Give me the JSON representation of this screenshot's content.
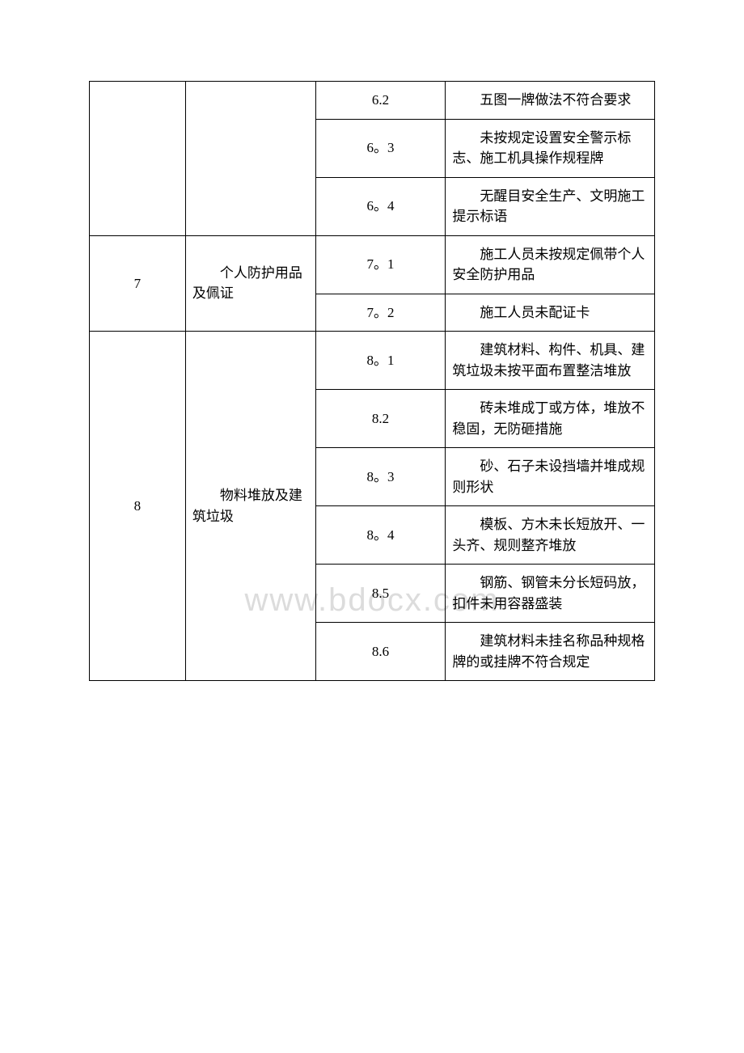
{
  "watermark": "www.bdocx.com",
  "table": {
    "rows": [
      {
        "num": "",
        "cat": "",
        "id": "6.2",
        "desc": "五图一牌做法不符合要求",
        "showNum": false,
        "showCat": false
      },
      {
        "num": "",
        "cat": "",
        "id": "6。3",
        "desc": "未按规定设置安全警示标志、施工机具操作规程牌",
        "showNum": false,
        "showCat": false
      },
      {
        "num": "",
        "cat": "",
        "id": "6。4",
        "desc": "无醒目安全生产、文明施工提示标语",
        "showNum": false,
        "showCat": false
      },
      {
        "num": "7",
        "cat": "个人防护用品及佩证",
        "id": "7。1",
        "desc": "施工人员未按规定佩带个人安全防护用品",
        "showNum": true,
        "numRowspan": 2,
        "showCat": true,
        "catRowspan": 2
      },
      {
        "num": "",
        "cat": "",
        "id": "7。2",
        "desc": "施工人员未配证卡",
        "showNum": false,
        "showCat": false
      },
      {
        "num": "8",
        "cat": "物料堆放及建筑垃圾",
        "id": "8。1",
        "desc": "建筑材料、构件、机具、建筑垃圾未按平面布置整洁堆放",
        "showNum": true,
        "numRowspan": 6,
        "showCat": true,
        "catRowspan": 6
      },
      {
        "num": "",
        "cat": "",
        "id": "8.2",
        "desc": "砖未堆成丁或方体，堆放不稳固，无防砸措施",
        "showNum": false,
        "showCat": false
      },
      {
        "num": "",
        "cat": "",
        "id": "8。3",
        "desc": "砂、石子未设挡墙并堆成规则形状",
        "showNum": false,
        "showCat": false
      },
      {
        "num": "",
        "cat": "",
        "id": "8。4",
        "desc": "模板、方木未长短放开、一头齐、规则整齐堆放",
        "showNum": false,
        "showCat": false
      },
      {
        "num": "",
        "cat": "",
        "id": "8.5",
        "desc": "钢筋、钢管未分长短码放，扣件未用容器盛装",
        "showNum": false,
        "showCat": false
      },
      {
        "num": "",
        "cat": "",
        "id": "8.6",
        "desc": "建筑材料未挂名称品种规格牌的或挂牌不符合规定",
        "showNum": false,
        "showCat": false
      }
    ]
  },
  "style": {
    "background_color": "#ffffff",
    "border_color": "#000000",
    "text_color": "#000000",
    "watermark_color": "#dcdcdc",
    "font_size": 17,
    "watermark_font_size": 40,
    "col_widths": [
      "17%",
      "23%",
      "23%",
      "37%"
    ]
  }
}
